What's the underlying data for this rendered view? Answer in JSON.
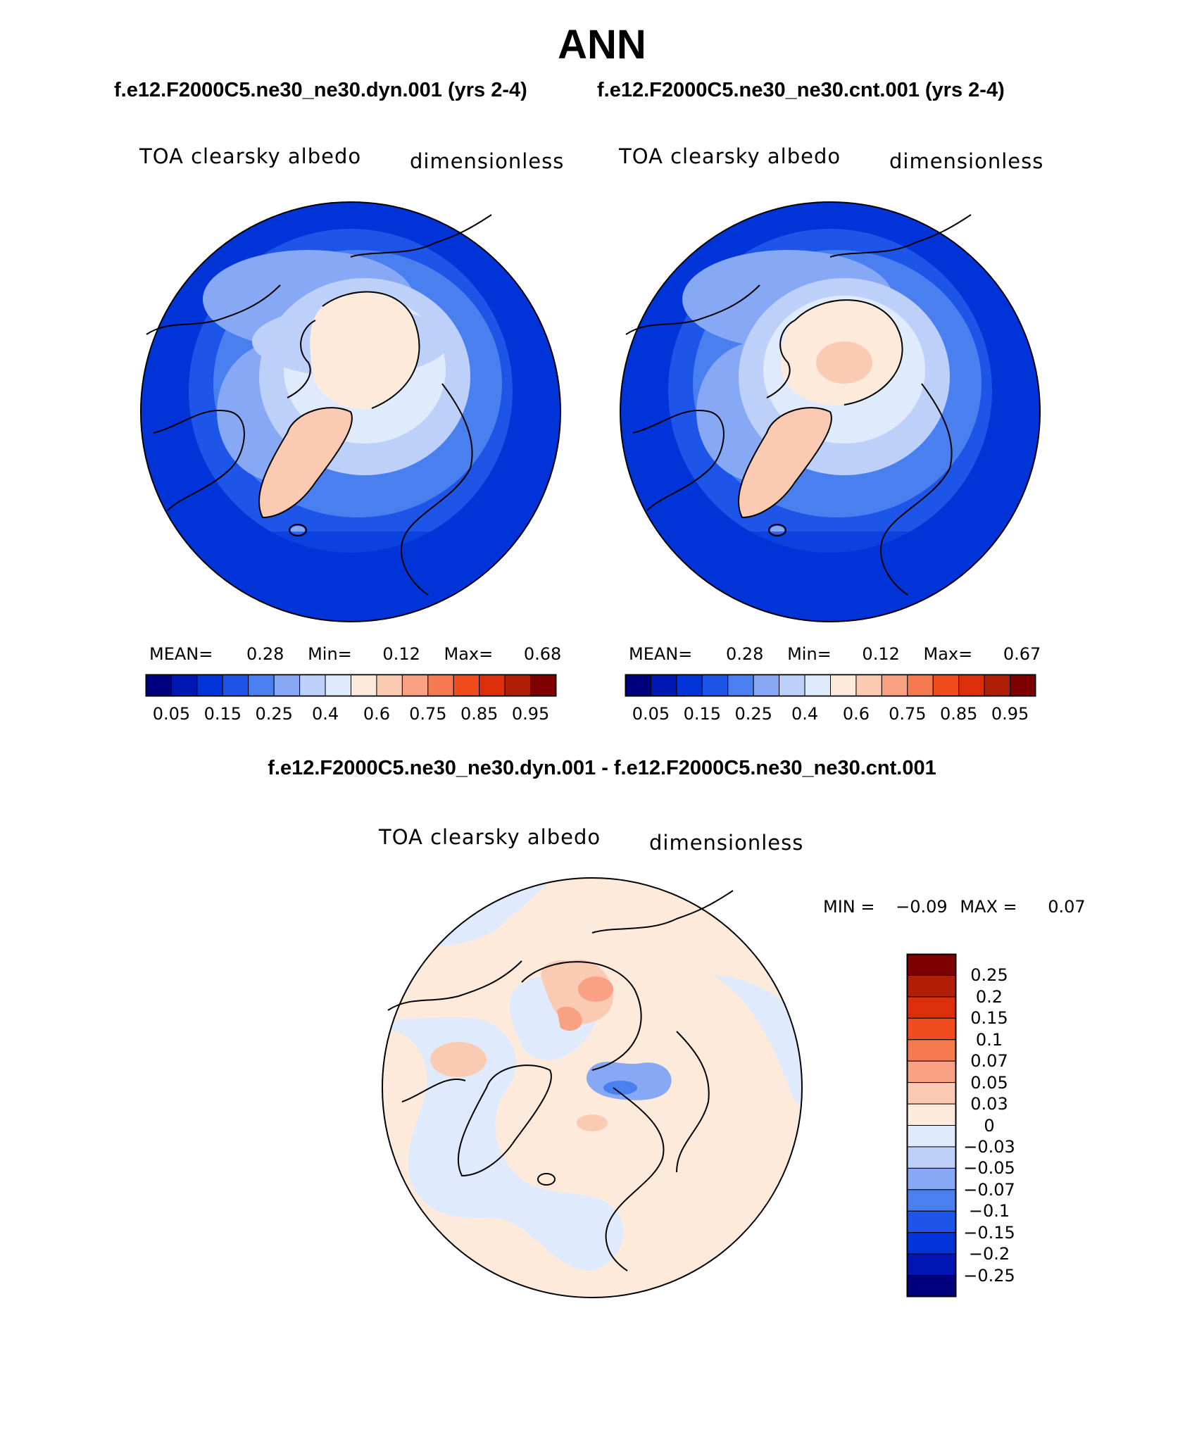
{
  "title": "ANN",
  "panels": [
    {
      "case_title": "f.e12.F2000C5.ne30_ne30.dyn.001 (yrs 2-4)",
      "variable": "TOA clearsky albedo",
      "units": "dimensionless",
      "mean_label": "MEAN=",
      "mean": "0.28",
      "min_label": "Min=",
      "min": "0.12",
      "max_label": "Max=",
      "max": "0.68"
    },
    {
      "case_title": "f.e12.F2000C5.ne30_ne30.cnt.001 (yrs 2-4)",
      "variable": "TOA clearsky albedo",
      "units": "dimensionless",
      "mean_label": "MEAN=",
      "mean": "0.28",
      "min_label": "Min=",
      "min": "0.12",
      "max_label": "Max=",
      "max": "0.67"
    }
  ],
  "colorbar": {
    "ticks": [
      "0.05",
      "0.15",
      "0.25",
      "0.4",
      "0.6",
      "0.75",
      "0.85",
      "0.95"
    ],
    "colors": [
      "#00007f",
      "#0016b3",
      "#0034d8",
      "#1c55e8",
      "#4a7ff0",
      "#87a9f5",
      "#bcd0f9",
      "#dfeafc",
      "#fdeadb",
      "#fbcab2",
      "#f8a283",
      "#f67a50",
      "#f14c1e",
      "#dd2e0c",
      "#b01e06",
      "#7f0000"
    ]
  },
  "difference": {
    "title": "f.e12.F2000C5.ne30_ne30.dyn.001 - f.e12.F2000C5.ne30_ne30.cnt.001",
    "variable": "TOA clearsky albedo",
    "units": "dimensionless",
    "min_label": "MIN =",
    "min": "−0.09",
    "max_label": "MAX =",
    "max": "0.07",
    "legend_labels": [
      "0.25",
      "0.2",
      "0.15",
      "0.1",
      "0.07",
      "0.05",
      "0.03",
      "0",
      "−0.03",
      "−0.05",
      "−0.07",
      "−0.1",
      "−0.15",
      "−0.2",
      "−0.25"
    ],
    "legend_colors": [
      "#7f0000",
      "#b01e06",
      "#dd2e0c",
      "#f14c1e",
      "#f67a50",
      "#f8a283",
      "#fbcab2",
      "#fdeadb",
      "#dfeafc",
      "#bcd0f9",
      "#87a9f5",
      "#4a7ff0",
      "#1c55e8",
      "#0034d8",
      "#0016b3",
      "#00007f"
    ]
  }
}
